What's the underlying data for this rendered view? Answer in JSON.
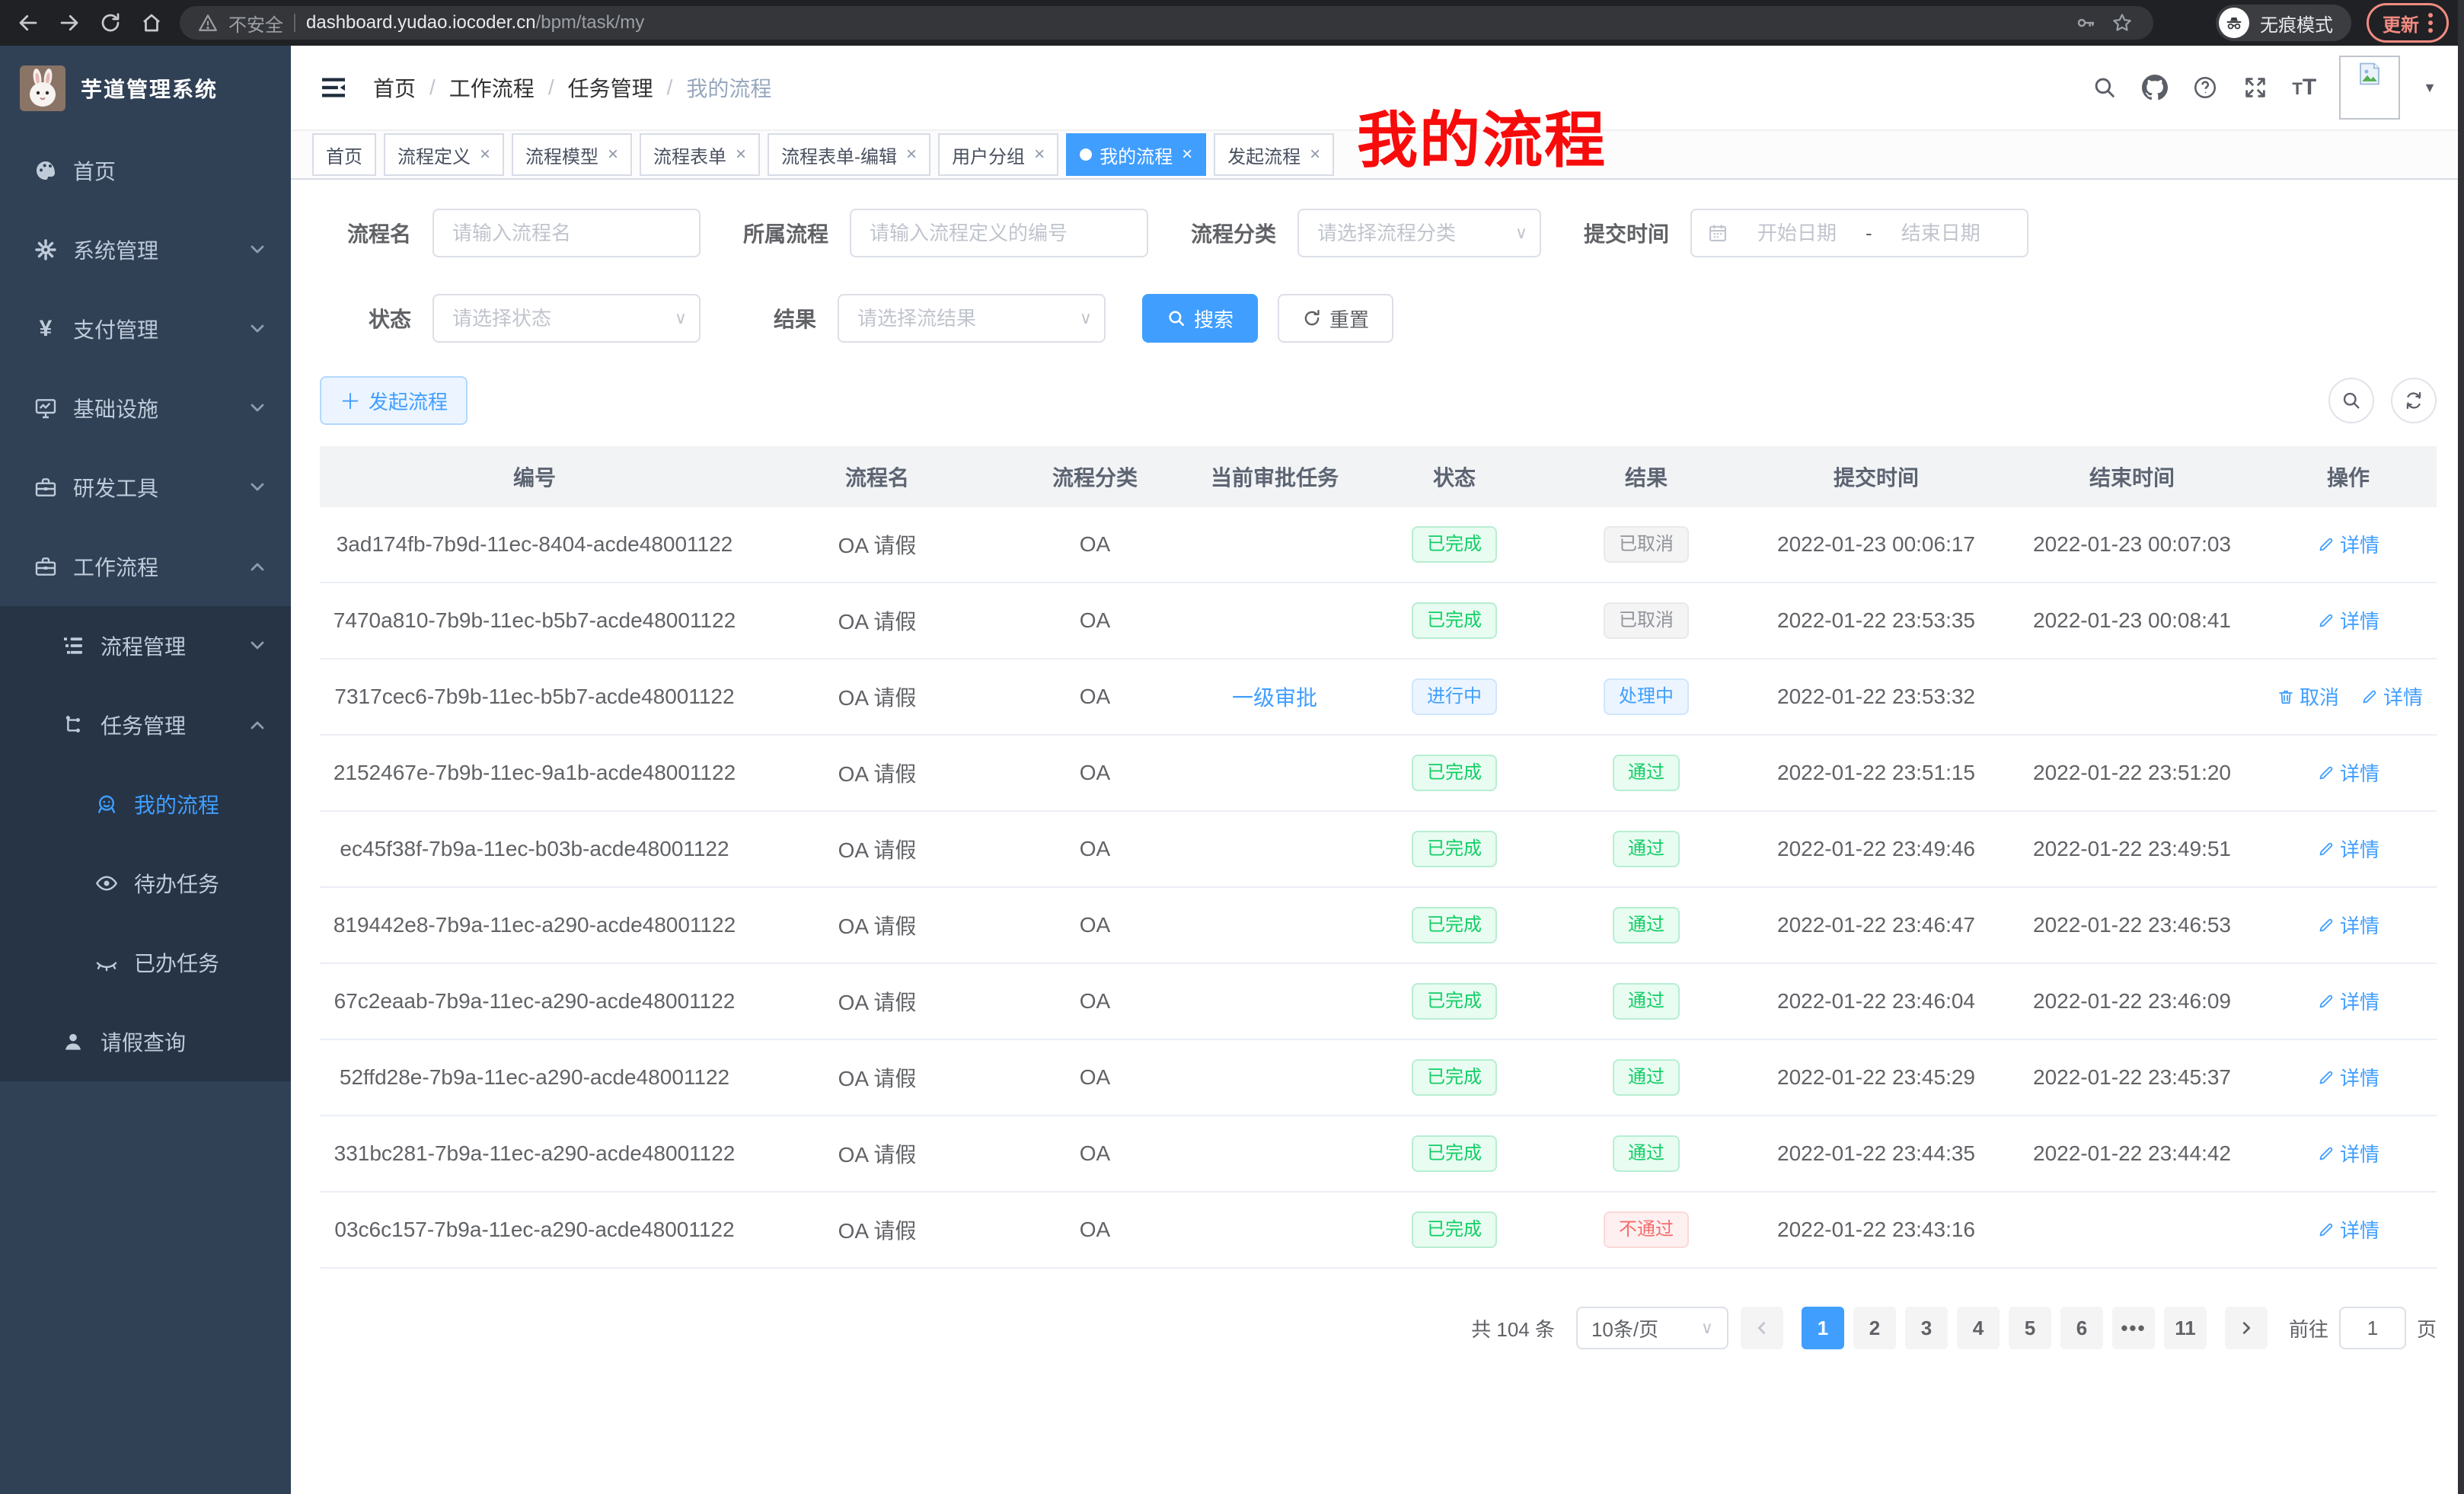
{
  "browser": {
    "security_warning": "不安全",
    "url_host": "dashboard.yudao.iocoder.cn",
    "url_path": "/bpm/task/my",
    "incognito_label": "无痕模式",
    "update_label": "更新"
  },
  "sidebar": {
    "title": "芋道管理系统",
    "items": [
      {
        "label": "首页",
        "icon": "dashboard-icon",
        "indent": 0
      },
      {
        "label": "系统管理",
        "icon": "gear-icon",
        "indent": 0,
        "chevron": "down"
      },
      {
        "label": "支付管理",
        "icon": "yen-icon",
        "indent": 0,
        "chevron": "down"
      },
      {
        "label": "基础设施",
        "icon": "monitor-icon",
        "indent": 0,
        "chevron": "down"
      },
      {
        "label": "研发工具",
        "icon": "toolbox-icon",
        "indent": 0,
        "chevron": "down"
      },
      {
        "label": "工作流程",
        "icon": "briefcase-icon",
        "indent": 0,
        "chevron": "up"
      },
      {
        "label": "流程管理",
        "icon": "tree-icon",
        "indent": 1,
        "chevron": "down",
        "insub": true
      },
      {
        "label": "任务管理",
        "icon": "flow-icon",
        "indent": 1,
        "chevron": "up",
        "insub": true
      },
      {
        "label": "我的流程",
        "icon": "face-icon",
        "indent": 2,
        "active": true,
        "insub": true
      },
      {
        "label": "待办任务",
        "icon": "eye-icon",
        "indent": 2,
        "insub": true
      },
      {
        "label": "已办任务",
        "icon": "eye-closed-icon",
        "indent": 2,
        "insub": true
      },
      {
        "label": "请假查询",
        "icon": "user-icon",
        "indent": 1,
        "insub": true
      }
    ]
  },
  "header": {
    "breadcrumb": [
      "首页",
      "工作流程",
      "任务管理",
      "我的流程"
    ],
    "annotation": "我的流程"
  },
  "tabs": [
    {
      "label": "首页",
      "closable": false
    },
    {
      "label": "流程定义",
      "closable": true
    },
    {
      "label": "流程模型",
      "closable": true
    },
    {
      "label": "流程表单",
      "closable": true
    },
    {
      "label": "流程表单-编辑",
      "closable": true
    },
    {
      "label": "用户分组",
      "closable": true
    },
    {
      "label": "我的流程",
      "closable": true,
      "active": true
    },
    {
      "label": "发起流程",
      "closable": true
    }
  ],
  "filters": {
    "name_label": "流程名",
    "name_placeholder": "请输入流程名",
    "def_label": "所属流程",
    "def_placeholder": "请输入流程定义的编号",
    "category_label": "流程分类",
    "category_placeholder": "请选择流程分类",
    "time_label": "提交时间",
    "time_start_placeholder": "开始日期",
    "time_separator": "-",
    "time_end_placeholder": "结束日期",
    "status_label": "状态",
    "status_placeholder": "请选择状态",
    "result_label": "结果",
    "result_placeholder": "请选择流结果",
    "search_label": "搜索",
    "reset_label": "重置"
  },
  "toolbar": {
    "create_label": "发起流程"
  },
  "table": {
    "columns": [
      "编号",
      "流程名",
      "流程分类",
      "当前审批任务",
      "状态",
      "结果",
      "提交时间",
      "结束时间",
      "操作"
    ],
    "rows": [
      {
        "id": "3ad174fb-7b9d-11ec-8404-acde48001122",
        "name": "OA 请假",
        "category": "OA",
        "task": "",
        "status": {
          "label": "已完成",
          "type": "success"
        },
        "result": {
          "label": "已取消",
          "type": "info"
        },
        "submit": "2022-01-23 00:06:17",
        "end": "2022-01-23 00:07:03",
        "actions": [
          {
            "label": "详情",
            "type": "detail"
          }
        ]
      },
      {
        "id": "7470a810-7b9b-11ec-b5b7-acde48001122",
        "name": "OA 请假",
        "category": "OA",
        "task": "",
        "status": {
          "label": "已完成",
          "type": "success"
        },
        "result": {
          "label": "已取消",
          "type": "info"
        },
        "submit": "2022-01-22 23:53:35",
        "end": "2022-01-23 00:08:41",
        "actions": [
          {
            "label": "详情",
            "type": "detail"
          }
        ]
      },
      {
        "id": "7317cec6-7b9b-11ec-b5b7-acde48001122",
        "name": "OA 请假",
        "category": "OA",
        "task": "一级审批",
        "status": {
          "label": "进行中",
          "type": "primary"
        },
        "result": {
          "label": "处理中",
          "type": "primary"
        },
        "submit": "2022-01-22 23:53:32",
        "end": "",
        "actions": [
          {
            "label": "取消",
            "type": "cancel"
          },
          {
            "label": "详情",
            "type": "detail"
          }
        ]
      },
      {
        "id": "2152467e-7b9b-11ec-9a1b-acde48001122",
        "name": "OA 请假",
        "category": "OA",
        "task": "",
        "status": {
          "label": "已完成",
          "type": "success"
        },
        "result": {
          "label": "通过",
          "type": "success"
        },
        "submit": "2022-01-22 23:51:15",
        "end": "2022-01-22 23:51:20",
        "actions": [
          {
            "label": "详情",
            "type": "detail"
          }
        ]
      },
      {
        "id": "ec45f38f-7b9a-11ec-b03b-acde48001122",
        "name": "OA 请假",
        "category": "OA",
        "task": "",
        "status": {
          "label": "已完成",
          "type": "success"
        },
        "result": {
          "label": "通过",
          "type": "success"
        },
        "submit": "2022-01-22 23:49:46",
        "end": "2022-01-22 23:49:51",
        "actions": [
          {
            "label": "详情",
            "type": "detail"
          }
        ]
      },
      {
        "id": "819442e8-7b9a-11ec-a290-acde48001122",
        "name": "OA 请假",
        "category": "OA",
        "task": "",
        "status": {
          "label": "已完成",
          "type": "success"
        },
        "result": {
          "label": "通过",
          "type": "success"
        },
        "submit": "2022-01-22 23:46:47",
        "end": "2022-01-22 23:46:53",
        "actions": [
          {
            "label": "详情",
            "type": "detail"
          }
        ]
      },
      {
        "id": "67c2eaab-7b9a-11ec-a290-acde48001122",
        "name": "OA 请假",
        "category": "OA",
        "task": "",
        "status": {
          "label": "已完成",
          "type": "success"
        },
        "result": {
          "label": "通过",
          "type": "success"
        },
        "submit": "2022-01-22 23:46:04",
        "end": "2022-01-22 23:46:09",
        "actions": [
          {
            "label": "详情",
            "type": "detail"
          }
        ]
      },
      {
        "id": "52ffd28e-7b9a-11ec-a290-acde48001122",
        "name": "OA 请假",
        "category": "OA",
        "task": "",
        "status": {
          "label": "已完成",
          "type": "success"
        },
        "result": {
          "label": "通过",
          "type": "success"
        },
        "submit": "2022-01-22 23:45:29",
        "end": "2022-01-22 23:45:37",
        "actions": [
          {
            "label": "详情",
            "type": "detail"
          }
        ]
      },
      {
        "id": "331bc281-7b9a-11ec-a290-acde48001122",
        "name": "OA 请假",
        "category": "OA",
        "task": "",
        "status": {
          "label": "已完成",
          "type": "success"
        },
        "result": {
          "label": "通过",
          "type": "success"
        },
        "submit": "2022-01-22 23:44:35",
        "end": "2022-01-22 23:44:42",
        "actions": [
          {
            "label": "详情",
            "type": "detail"
          }
        ]
      },
      {
        "id": "03c6c157-7b9a-11ec-a290-acde48001122",
        "name": "OA 请假",
        "category": "OA",
        "task": "",
        "status": {
          "label": "已完成",
          "type": "success"
        },
        "result": {
          "label": "不通过",
          "type": "danger"
        },
        "submit": "2022-01-22 23:43:16",
        "end": "",
        "actions": [
          {
            "label": "详情",
            "type": "detail"
          }
        ]
      }
    ]
  },
  "pagination": {
    "total": "共 104 条",
    "page_size": "10条/页",
    "pages": [
      {
        "label": "1",
        "active": true
      },
      {
        "label": "2"
      },
      {
        "label": "3"
      },
      {
        "label": "4"
      },
      {
        "label": "5"
      },
      {
        "label": "6"
      },
      {
        "label": "•••",
        "ellipsis": true
      },
      {
        "label": "11"
      }
    ],
    "goto_label": "前往",
    "goto_value": "1",
    "goto_suffix": "页"
  }
}
